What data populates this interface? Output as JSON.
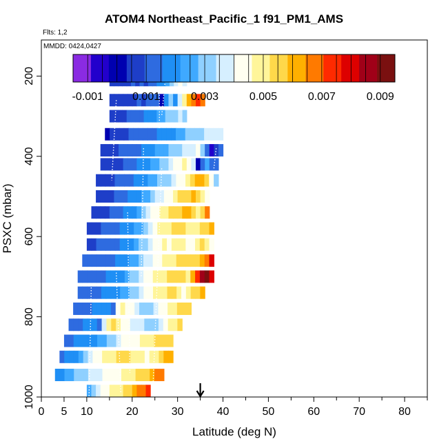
{
  "header": {
    "title": "ATOM4 Northeast_Pacific_1 f91_PM1_AMS",
    "flights_note": "Flts: 1,2",
    "date_note": "MMDD: 0424,0427"
  },
  "colorbar": {
    "min": -0.0015,
    "max": 0.0095,
    "tick_values": [
      -0.001,
      0.001,
      0.003,
      0.005,
      0.007,
      0.009
    ],
    "tick_labels": [
      "-0.001",
      "0.001",
      "0.003",
      "0.005",
      "0.007",
      "0.009"
    ],
    "colors": [
      "#8a2be2",
      "#2200cc",
      "#0000b0",
      "#1e3ec8",
      "#2e6be0",
      "#1f8ff5",
      "#3fa9ff",
      "#8fd0ff",
      "#d6efff",
      "#fffff0",
      "#fff59a",
      "#ffd84a",
      "#ffb000",
      "#ff7a00",
      "#ff2a00",
      "#dd0000",
      "#a00018",
      "#7a1010"
    ]
  },
  "chart_data": {
    "type": "heatmap",
    "title": "ATOM4 Northeast_Pacific_1 f91_PM1_AMS",
    "xlabel": "Latitude (deg N)",
    "ylabel": "PSXC (mbar)",
    "xlim": [
      0,
      85
    ],
    "ylim": [
      1000,
      110
    ],
    "x_ticks": [
      0,
      5,
      10,
      20,
      30,
      40,
      50,
      60,
      70,
      80
    ],
    "x_tick_labels": [
      "0",
      "5",
      "10",
      "20",
      "30",
      "40",
      "50",
      "60",
      "70",
      "80"
    ],
    "y_ticks": [
      200,
      400,
      600,
      800,
      1000
    ],
    "y_tick_labels": [
      "200",
      "400",
      "600",
      "800",
      "1000"
    ],
    "marker": {
      "label": "arrow",
      "x": 35
    },
    "rows": [
      {
        "p": 185,
        "lat": [
          27,
          32
        ],
        "values": [
          0.0025,
          0.003,
          0.002,
          0.0035,
          0.004,
          0.002
        ]
      },
      {
        "p": 210,
        "lat": [
          15,
          32
        ],
        "values": [
          0.0005,
          0.0006,
          0.0007,
          0.0006,
          0.0008,
          0.001,
          0.0009,
          0.001,
          0.0008,
          0.0012,
          0.0015,
          0.0018,
          0.002,
          0.0025,
          0.003,
          0.0035,
          0.004,
          0.0038
        ]
      },
      {
        "p": 260,
        "lat": [
          15,
          36
        ],
        "values": [
          0.0004,
          0.0005,
          0.0006,
          0.0005,
          0.0007,
          0.0008,
          0.001,
          0.0009,
          0.0011,
          0.0012,
          0.0014,
          0.0,
          0.0016,
          0.003,
          0.002,
          0.0035,
          0.005,
          0.006,
          0.007,
          0.0075,
          0.0065
        ]
      },
      {
        "p": 300,
        "lat": [
          15,
          32
        ],
        "values": [
          0.0006,
          0.0007,
          0.0008,
          0.0009,
          0.001,
          0.0012,
          0.0013,
          0.0015,
          0.0016,
          0.0018,
          0.002,
          0.0022,
          0.0025,
          0.0028,
          0.003,
          0.0032,
          0.0035,
          0.003
        ]
      },
      {
        "p": 345,
        "lat": [
          14,
          40
        ],
        "values": [
          0.0003,
          0.0005,
          0.0006,
          0.0007,
          0.0008,
          0.001,
          0.0011,
          0.0012,
          0.0013,
          0.0014,
          0.0015,
          0.0016,
          0.0017,
          0.0018,
          0.002,
          0.0022,
          0.0025,
          0.0028,
          0.003,
          0.0032,
          0.0033,
          0.0034,
          0.0035,
          0.0036,
          0.0038
        ]
      },
      {
        "p": 385,
        "lat": [
          13,
          40
        ],
        "values": [
          0.0004,
          0.0005,
          0.0006,
          0.0008,
          0.001,
          0.0012,
          0.0013,
          0.0014,
          0.0015,
          0.0016,
          0.0018,
          0.002,
          0.0022,
          0.0024,
          0.0026,
          0.0028,
          0.003,
          0.0032,
          0.0034,
          0.0036,
          0.0038,
          0.004,
          0.003,
          0.001,
          -0.0005,
          0.0005,
          0.001
        ]
      },
      {
        "p": 420,
        "lat": [
          13,
          39
        ],
        "values": [
          0.0004,
          0.0005,
          0.0006,
          0.0007,
          0.0008,
          0.001,
          0.0012,
          0.0014,
          0.0016,
          0.0018,
          0.002,
          0.0022,
          0.0025,
          0.0028,
          0.003,
          0.0035,
          0.004,
          0.0045,
          0.0048,
          0.0042,
          0.0035,
          0.0,
          0.001,
          0.0025,
          0.0015,
          0.001
        ]
      },
      {
        "p": 460,
        "lat": [
          12,
          39
        ],
        "values": [
          0.0005,
          0.0006,
          0.0007,
          0.0008,
          0.001,
          0.0012,
          0.0013,
          0.0015,
          0.0016,
          0.0018,
          0.002,
          0.0022,
          0.0025,
          0.0028,
          0.003,
          0.0033,
          0.0036,
          0.004,
          0.0045,
          0.005,
          0.0055,
          0.006,
          0.0062,
          0.0058,
          0.0045,
          0.003
        ]
      },
      {
        "p": 500,
        "lat": [
          12,
          37
        ],
        "values": [
          0.0005,
          0.0006,
          0.0007,
          0.0009,
          0.0011,
          0.0013,
          0.0015,
          0.0017,
          0.0019,
          0.0021,
          0.0023,
          0.0026,
          0.003,
          0.0034,
          0.0038,
          0.0042,
          0.0046,
          0.005,
          0.0053,
          0.0056,
          0.0058,
          0.006,
          0.0055,
          0.005,
          0.0045
        ]
      },
      {
        "p": 540,
        "lat": [
          11,
          37
        ],
        "values": [
          0.0006,
          0.0007,
          0.0008,
          0.0009,
          0.0011,
          0.0013,
          0.0015,
          0.0017,
          0.0019,
          0.0021,
          0.0024,
          0.0028,
          0.0034,
          0.004,
          0.0046,
          0.005,
          0.0052,
          0.0054,
          0.0056,
          0.0058,
          0.006,
          0.0062,
          0.0055,
          0.0052,
          0.0058,
          0.0065
        ]
      },
      {
        "p": 580,
        "lat": [
          10,
          38
        ],
        "values": [
          0.0007,
          0.0008,
          0.0009,
          0.001,
          0.0011,
          0.0012,
          0.0014,
          0.0016,
          0.0018,
          0.002,
          0.0023,
          0.0027,
          0.0032,
          0.0038,
          0.0044,
          0.0048,
          0.005,
          0.0052,
          0.0054,
          0.0056,
          0.0055,
          0.0052,
          0.0048,
          0.005,
          0.0053,
          0.0058,
          0.006
        ]
      },
      {
        "p": 620,
        "lat": [
          10,
          38
        ],
        "values": [
          0.0008,
          0.0009,
          0.001,
          0.0011,
          0.0012,
          0.0013,
          0.0015,
          0.0017,
          0.0019,
          0.0021,
          0.0024,
          0.0028,
          0.0033,
          0.0038,
          0.0044,
          0.0046,
          0.0048,
          0.0046,
          0.005,
          0.0052,
          0.0048,
          0.004,
          0.0044,
          0.0052,
          0.0058,
          0.005,
          0.0045
        ]
      },
      {
        "p": 660,
        "lat": [
          9,
          38
        ],
        "values": [
          0.001,
          0.0011,
          0.0012,
          0.0012,
          0.0013,
          0.0014,
          0.0015,
          0.0016,
          0.0018,
          0.002,
          0.0023,
          0.0026,
          0.003,
          0.0034,
          0.0038,
          0.0042,
          0.0046,
          0.0048,
          0.005,
          0.0052,
          0.0054,
          0.0056,
          0.0058,
          0.0056,
          0.0054,
          0.006,
          0.007,
          0.008
        ]
      },
      {
        "p": 700,
        "lat": [
          8,
          38
        ],
        "values": [
          0.001,
          0.0011,
          0.0012,
          0.0013,
          0.0014,
          0.0015,
          0.0016,
          0.0017,
          0.0019,
          0.0021,
          0.0024,
          0.0028,
          0.0032,
          0.0036,
          0.004,
          0.0044,
          0.0048,
          0.005,
          0.0052,
          0.0054,
          0.0056,
          0.0058,
          0.0055,
          0.005,
          0.006,
          0.0075,
          0.0085,
          0.009,
          0.0078
        ]
      },
      {
        "p": 740,
        "lat": [
          8,
          36
        ],
        "values": [
          0.0011,
          0.0012,
          0.0013,
          0.0014,
          0.0015,
          0.0016,
          0.0017,
          0.0018,
          0.002,
          0.0022,
          0.0024,
          0.0028,
          0.0032,
          0.0036,
          0.004,
          0.0044,
          0.0048,
          0.005,
          0.0052,
          0.0054,
          0.0056,
          0.005,
          0.0045,
          0.005,
          0.0055,
          0.0058,
          0.006
        ]
      },
      {
        "p": 780,
        "lat": [
          7,
          33
        ],
        "values": [
          0.0012,
          0.0013,
          0.0014,
          0.0015,
          0.0016,
          0.0017,
          0.0018,
          0.002,
          0.0015,
          0.004,
          0.005,
          0.0045,
          0.004,
          0.0036,
          0.0032,
          0.003,
          0.0032,
          0.0036,
          0.004,
          0.0044,
          0.0048,
          0.005,
          0.0054,
          0.0056,
          0.0058
        ]
      },
      {
        "p": 820,
        "lat": [
          6,
          31
        ],
        "values": [
          0.0013,
          0.0014,
          0.0015,
          0.0016,
          0.0017,
          0.0018,
          0.0015,
          0.0038,
          0.005,
          0.0055,
          0.005,
          0.0045,
          0.004,
          0.0038,
          0.0036,
          0.0034,
          0.0032,
          0.003,
          0.0032,
          0.0036,
          0.0042,
          0.0048,
          0.0052,
          0.0056
        ]
      },
      {
        "p": 860,
        "lat": [
          5,
          29
        ],
        "values": [
          0.0014,
          0.0015,
          0.0016,
          0.0017,
          0.0018,
          0.0019,
          0.002,
          0.0022,
          0.0024,
          0.0028,
          0.0032,
          0.0036,
          0.004,
          0.0042,
          0.0044,
          0.0046,
          0.0048,
          0.005,
          0.0052,
          0.0054,
          0.0056,
          0.0058,
          0.0055
        ]
      },
      {
        "p": 900,
        "lat": [
          4,
          29
        ],
        "values": [
          0.0015,
          0.0016,
          0.0018,
          0.002,
          0.0025,
          0.003,
          0.0035,
          0.004,
          0.0044,
          0.0048,
          0.005,
          0.0052,
          0.0054,
          0.0056,
          0.0054,
          0.0052,
          0.005,
          0.0048,
          0.0046,
          0.0048,
          0.0052,
          0.0056,
          0.006,
          0.0062
        ]
      },
      {
        "p": 945,
        "lat": [
          3,
          27
        ],
        "values": [
          0.0018,
          0.002,
          0.0022,
          0.0025,
          0.0028,
          0.003,
          0.0032,
          0.0034,
          0.0036,
          0.0038,
          0.004,
          0.0042,
          0.0044,
          0.0046,
          0.0048,
          0.005,
          0.0052,
          0.0054,
          0.0056,
          0.0058,
          0.006,
          0.0065,
          0.007
        ]
      },
      {
        "p": 985,
        "lat": [
          10,
          24
        ],
        "values": [
          0.0025,
          0.003,
          0.0035,
          0.004,
          0.0045,
          0.0048,
          0.005,
          0.0052,
          0.0054,
          0.0056,
          0.006,
          0.0065,
          0.007,
          0.0075
        ]
      }
    ],
    "flight_tracks": [
      [
        [
          27.5,
          185
        ],
        [
          26.5,
          300
        ]
      ],
      [
        [
          16.5,
          260
        ],
        [
          15.5,
          460
        ]
      ],
      [
        [
          11,
          720
        ],
        [
          10.5,
          1000
        ]
      ],
      [
        [
          16.5,
          690
        ],
        [
          17.5,
          990
        ]
      ],
      [
        [
          22.5,
          380
        ],
        [
          22,
          700
        ]
      ],
      [
        [
          26.5,
          430
        ],
        [
          24.5,
          1000
        ]
      ],
      [
        [
          26,
          240
        ],
        [
          26,
          330
        ]
      ],
      [
        [
          38.5,
          380
        ],
        [
          38,
          430
        ]
      ],
      [
        [
          19,
          540
        ],
        [
          19.5,
          940
        ]
      ]
    ]
  }
}
